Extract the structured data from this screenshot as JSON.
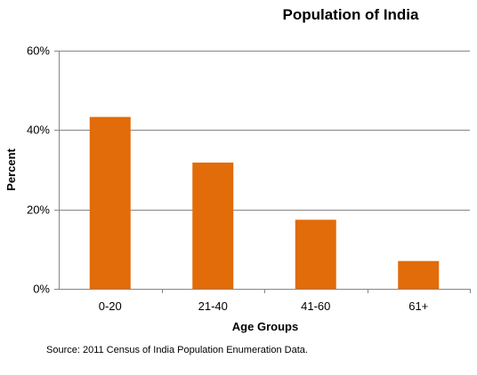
{
  "chart_data": {
    "type": "bar",
    "title": "Population of India",
    "xlabel": "Age Groups",
    "ylabel": "Percent",
    "categories": [
      "0-20",
      "21-40",
      "41-60",
      "61+"
    ],
    "values": [
      43.3,
      31.8,
      17.4,
      7.0
    ],
    "ylim": [
      0,
      60
    ],
    "yticks": [
      0,
      20,
      40,
      60
    ],
    "ytick_labels": [
      "0%",
      "20%",
      "40%",
      "60%"
    ],
    "grid": true,
    "legend": false,
    "bar_color": "#e26b0a",
    "source": "Source:  2011 Census of India Population Enumeration Data."
  }
}
